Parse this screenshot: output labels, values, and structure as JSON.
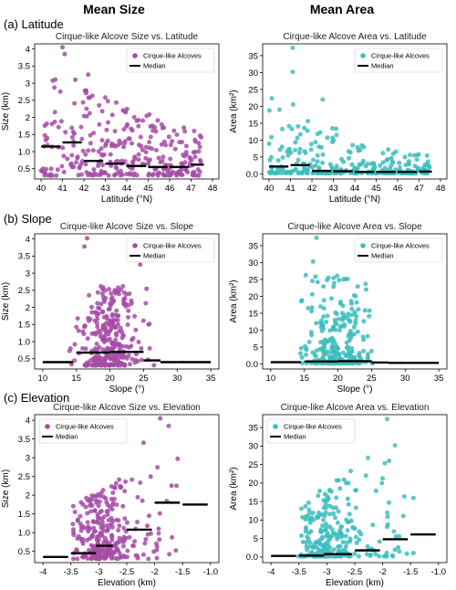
{
  "column_titles": [
    "Mean Size",
    "Mean Area"
  ],
  "row_labels": [
    "(a) Latitude",
    "(b) Slope",
    "(c) Elevation"
  ],
  "colors": {
    "size": "#a64ca6",
    "area": "#3dbdbd",
    "median": "#000000"
  },
  "chart_data": [
    {
      "id": "size_lat",
      "type": "scatter",
      "title": "Cirque-like Alcove Size vs. Latitude",
      "xlabel": "Latitude (°N)",
      "ylabel": "Size (km)",
      "xlim": [
        39.7,
        48.3
      ],
      "ylim": [
        0.2,
        4.15
      ],
      "xticks": [
        40,
        41,
        42,
        43,
        44,
        45,
        46,
        47,
        48
      ],
      "yticks": [
        0.5,
        1.0,
        1.5,
        2.0,
        2.5,
        3.0,
        3.5,
        4.0
      ],
      "legend": {
        "placement": "top-right",
        "entries": [
          "Cirque-like Alcoves",
          "Median"
        ]
      },
      "series": [
        {
          "name": "Cirque-like Alcoves",
          "color_key": "size",
          "x_range": [
            40,
            47.5
          ],
          "y_range": [
            0.3,
            4.05
          ],
          "n": 300,
          "seed": 11
        }
      ],
      "medians": [
        {
          "x0": 40.0,
          "x1": 40.9,
          "y": 1.15
        },
        {
          "x0": 41.0,
          "x1": 41.9,
          "y": 1.27
        },
        {
          "x0": 42.0,
          "x1": 42.9,
          "y": 0.73
        },
        {
          "x0": 43.0,
          "x1": 43.9,
          "y": 0.65
        },
        {
          "x0": 44.0,
          "x1": 44.9,
          "y": 0.58
        },
        {
          "x0": 45.0,
          "x1": 45.9,
          "y": 0.55
        },
        {
          "x0": 46.0,
          "x1": 46.9,
          "y": 0.55
        },
        {
          "x0": 47.0,
          "x1": 47.6,
          "y": 0.62
        }
      ]
    },
    {
      "id": "area_lat",
      "type": "scatter",
      "title": "Cirque-like Alcove Area vs. Latitude",
      "xlabel": "Latitude (°N)",
      "ylabel": "Area (km²)",
      "xlim": [
        39.7,
        48.3
      ],
      "ylim": [
        -1.5,
        38.5
      ],
      "xticks": [
        40,
        41,
        42,
        43,
        44,
        45,
        46,
        47,
        48
      ],
      "yticks": [
        0,
        5,
        10,
        15,
        20,
        25,
        30,
        35
      ],
      "legend": {
        "placement": "top-right",
        "entries": [
          "Cirque-like Alcoves",
          "Median"
        ]
      },
      "series": [
        {
          "name": "Cirque-like Alcoves",
          "color_key": "area",
          "x_range": [
            40,
            47.5
          ],
          "y_range": [
            0.2,
            37.5
          ],
          "n": 300,
          "seed": 12
        }
      ],
      "medians": [
        {
          "x0": 40.0,
          "x1": 40.9,
          "y": 2.2
        },
        {
          "x0": 41.0,
          "x1": 41.9,
          "y": 2.6
        },
        {
          "x0": 42.0,
          "x1": 42.9,
          "y": 0.9
        },
        {
          "x0": 43.0,
          "x1": 43.9,
          "y": 0.8
        },
        {
          "x0": 44.0,
          "x1": 44.9,
          "y": 0.6
        },
        {
          "x0": 45.0,
          "x1": 45.9,
          "y": 0.6
        },
        {
          "x0": 46.0,
          "x1": 46.9,
          "y": 0.6
        },
        {
          "x0": 47.0,
          "x1": 47.6,
          "y": 0.7
        }
      ]
    },
    {
      "id": "size_slope",
      "type": "scatter",
      "title": "Cirque-like Alcove Size vs. Slope",
      "xlabel": "Slope (°)",
      "ylabel": "Size (km)",
      "xlim": [
        8.8,
        36.2
      ],
      "ylim": [
        0.2,
        4.15
      ],
      "xticks": [
        10,
        15,
        20,
        25,
        30,
        35
      ],
      "yticks": [
        0.5,
        1.0,
        1.5,
        2.0,
        2.5,
        3.0,
        3.5,
        4.0
      ],
      "legend": {
        "placement": "top-right",
        "entries": [
          "Cirque-like Alcoves",
          "Median"
        ]
      },
      "series": [
        {
          "name": "Cirque-like Alcoves",
          "color_key": "size",
          "x_range": [
            13,
            31
          ],
          "y_range": [
            0.3,
            4.05
          ],
          "n": 300,
          "seed": 21
        }
      ],
      "medians": [
        {
          "x0": 10.0,
          "x1": 14.5,
          "y": 0.4
        },
        {
          "x0": 15.0,
          "x1": 17.5,
          "y": 0.68
        },
        {
          "x0": 17.5,
          "x1": 20.0,
          "y": 0.68
        },
        {
          "x0": 20.0,
          "x1": 22.5,
          "y": 0.7
        },
        {
          "x0": 22.5,
          "x1": 25.0,
          "y": 0.7
        },
        {
          "x0": 25.0,
          "x1": 27.5,
          "y": 0.45
        },
        {
          "x0": 27.5,
          "x1": 30.0,
          "y": 0.4
        },
        {
          "x0": 30.0,
          "x1": 35.0,
          "y": 0.4
        }
      ]
    },
    {
      "id": "area_slope",
      "type": "scatter",
      "title": "Cirque-like Alcove Area vs. Slope",
      "xlabel": "Slope (°)",
      "ylabel": "Area (km²)",
      "xlim": [
        8.8,
        36.2
      ],
      "ylim": [
        -1.5,
        38.5
      ],
      "xticks": [
        10,
        15,
        20,
        25,
        30,
        35
      ],
      "yticks": [
        0,
        5,
        10,
        15,
        20,
        25,
        30,
        35
      ],
      "legend": {
        "placement": "top-right",
        "entries": [
          "Cirque-like Alcoves",
          "Median"
        ]
      },
      "series": [
        {
          "name": "Cirque-like Alcoves",
          "color_key": "area",
          "x_range": [
            13,
            31
          ],
          "y_range": [
            0.2,
            37.5
          ],
          "n": 300,
          "seed": 22
        }
      ],
      "medians": [
        {
          "x0": 10.0,
          "x1": 14.5,
          "y": 0.5
        },
        {
          "x0": 15.0,
          "x1": 17.5,
          "y": 0.7
        },
        {
          "x0": 17.5,
          "x1": 20.0,
          "y": 0.7
        },
        {
          "x0": 20.0,
          "x1": 22.5,
          "y": 0.8
        },
        {
          "x0": 22.5,
          "x1": 25.0,
          "y": 0.8
        },
        {
          "x0": 25.0,
          "x1": 27.5,
          "y": 0.4
        },
        {
          "x0": 27.5,
          "x1": 30.0,
          "y": 0.3
        },
        {
          "x0": 30.0,
          "x1": 35.0,
          "y": 0.3
        }
      ]
    },
    {
      "id": "size_elev",
      "type": "scatter",
      "title": "Cirque-like Alcove Size vs. Elevation",
      "xlabel": "Elevation (km)",
      "ylabel": "Size (km)",
      "xlim": [
        -4.15,
        -0.85
      ],
      "ylim": [
        0.2,
        4.15
      ],
      "xticks": [
        -4.0,
        -3.5,
        -3.0,
        -2.5,
        -2.0,
        -1.5,
        -1.0
      ],
      "yticks": [
        0.5,
        1.0,
        1.5,
        2.0,
        2.5,
        3.0,
        3.5,
        4.0
      ],
      "legend": {
        "placement": "top-left",
        "entries": [
          "Cirque-like Alcoves",
          "Median"
        ]
      },
      "series": [
        {
          "name": "Cirque-like Alcoves",
          "color_key": "size",
          "x_range": [
            -3.6,
            -1.45
          ],
          "y_range": [
            0.3,
            4.05
          ],
          "n": 300,
          "seed": 31
        }
      ],
      "medians": [
        {
          "x0": -4.0,
          "x1": -3.55,
          "y": 0.35
        },
        {
          "x0": -3.5,
          "x1": -3.05,
          "y": 0.45
        },
        {
          "x0": -3.05,
          "x1": -2.75,
          "y": 0.65
        },
        {
          "x0": -2.5,
          "x1": -2.05,
          "y": 1.08
        },
        {
          "x0": -2.0,
          "x1": -1.55,
          "y": 1.8
        },
        {
          "x0": -1.5,
          "x1": -1.05,
          "y": 1.75
        }
      ]
    },
    {
      "id": "area_elev",
      "type": "scatter",
      "title": "Cirque-like Alcove Area vs. Elevation",
      "xlabel": "Elevation (km)",
      "ylabel": "Area (km²)",
      "xlim": [
        -4.15,
        -0.85
      ],
      "ylim": [
        -1.5,
        38.5
      ],
      "xticks": [
        -4.0,
        -3.5,
        -3.0,
        -2.5,
        -2.0,
        -1.5,
        -1.0
      ],
      "yticks": [
        0,
        5,
        10,
        15,
        20,
        25,
        30,
        35
      ],
      "legend": {
        "placement": "top-left",
        "entries": [
          "Cirque-like Alcoves",
          "Median"
        ]
      },
      "series": [
        {
          "name": "Cirque-like Alcoves",
          "color_key": "area",
          "x_range": [
            -3.6,
            -1.45
          ],
          "y_range": [
            0.2,
            37.5
          ],
          "n": 300,
          "seed": 32
        }
      ],
      "medians": [
        {
          "x0": -4.0,
          "x1": -3.55,
          "y": 0.3
        },
        {
          "x0": -3.5,
          "x1": -3.05,
          "y": 0.4
        },
        {
          "x0": -3.05,
          "x1": -2.55,
          "y": 0.8
        },
        {
          "x0": -2.5,
          "x1": -2.05,
          "y": 1.8
        },
        {
          "x0": -2.0,
          "x1": -1.55,
          "y": 4.8
        },
        {
          "x0": -1.5,
          "x1": -1.05,
          "y": 6.1
        }
      ]
    }
  ]
}
